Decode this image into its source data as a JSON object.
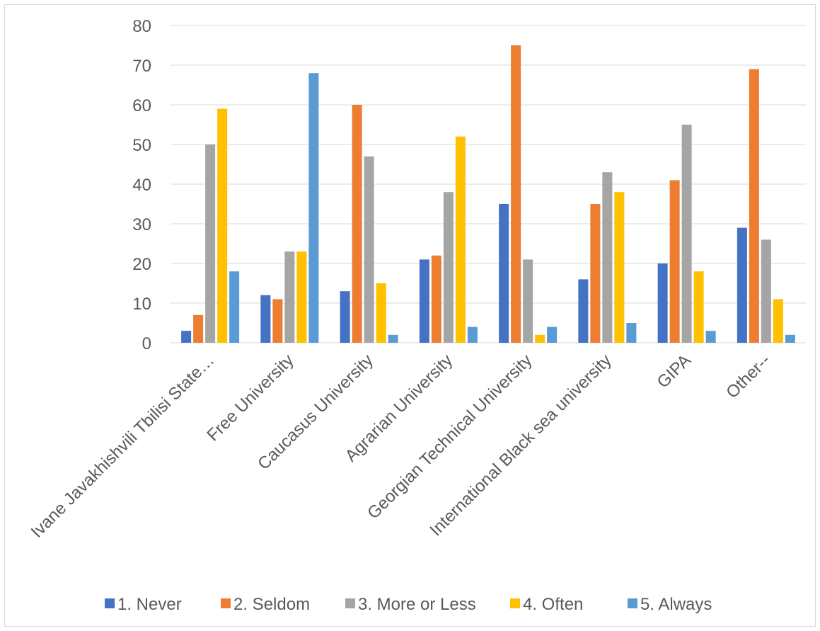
{
  "chart_data": {
    "type": "bar",
    "title": "",
    "xlabel": "",
    "ylabel": "",
    "ylim": [
      0,
      80
    ],
    "yticks": [
      0,
      10,
      20,
      30,
      40,
      50,
      60,
      70,
      80
    ],
    "grid": true,
    "legend_position": "bottom",
    "categories": [
      "Ivane Javakhishvili Tbilisi State…",
      "Free University",
      "Caucasus University",
      "Agrarian University",
      "Georgian Technical University",
      "International Black sea university",
      "GIPA",
      "Other--"
    ],
    "series": [
      {
        "name": "1. Never",
        "color": "#4472c4",
        "values": [
          3,
          12,
          13,
          21,
          35,
          16,
          20,
          29
        ]
      },
      {
        "name": "2. Seldom",
        "color": "#ed7d31",
        "values": [
          7,
          11,
          60,
          22,
          75,
          35,
          41,
          69
        ]
      },
      {
        "name": "3. More or Less",
        "color": "#a5a5a5",
        "values": [
          50,
          23,
          47,
          38,
          21,
          43,
          55,
          26
        ]
      },
      {
        "name": "4. Often",
        "color": "#ffc000",
        "values": [
          59,
          23,
          15,
          52,
          2,
          38,
          18,
          11
        ]
      },
      {
        "name": "5. Always",
        "color": "#5b9bd5",
        "values": [
          18,
          68,
          2,
          4,
          4,
          5,
          3,
          2
        ]
      }
    ]
  }
}
